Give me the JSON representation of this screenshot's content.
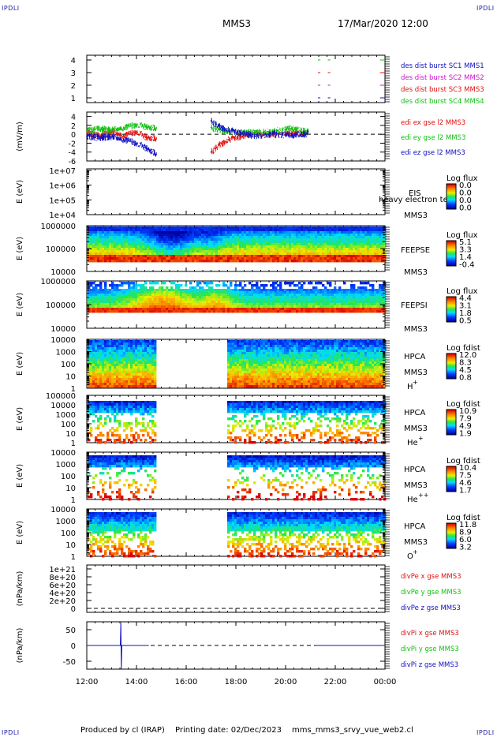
{
  "corners": {
    "tl": "IPDLI",
    "tr": "IPDLI",
    "bl": "IPDLI",
    "br": "IPDLI"
  },
  "header": {
    "title": "MMS3",
    "datetime": "17/Mar/2020 12:00"
  },
  "footer": {
    "producer": "Produced by cl (IRAP)",
    "printing": "Printing date: 02/Dec/2023",
    "filename": "mms_mms3_srvy_vue_web2.cl"
  },
  "colors": {
    "mms1": "#1010c0",
    "mms2": "#d010d0",
    "mms3": "#e01010",
    "mms4": "#10c010",
    "dashed": "#000000"
  },
  "x_axis": {
    "ticks": [
      "12:00",
      "14:00",
      "16:00",
      "18:00",
      "20:00",
      "22:00",
      "00:00"
    ]
  },
  "chart_data": [
    {
      "type": "line",
      "id": "burst",
      "yticks": [
        "4",
        "3",
        "2",
        "1"
      ],
      "legend": [
        "des dist burst SC1 MMS1",
        "des dist burst SC2 MMS2",
        "des dist burst SC3 MMS3",
        "des dist burst SC4 MMS4"
      ],
      "segments": [
        {
          "level": 4,
          "color": "mms4",
          "x": [
            21.3,
            21.4
          ]
        },
        {
          "level": 4,
          "color": "mms4",
          "x": [
            21.7,
            21.8
          ]
        },
        {
          "level": 4,
          "color": "mms4",
          "x": [
            23.8,
            24.0
          ]
        },
        {
          "level": 3,
          "color": "mms3",
          "x": [
            21.3,
            21.4
          ]
        },
        {
          "level": 3,
          "color": "mms3",
          "x": [
            21.7,
            21.8
          ]
        },
        {
          "level": 3,
          "color": "mms3",
          "x": [
            23.8,
            24.0
          ]
        },
        {
          "level": 2,
          "color": "mms2",
          "x": [
            21.3,
            21.4
          ]
        },
        {
          "level": 2,
          "color": "mms2",
          "x": [
            21.7,
            21.8
          ]
        },
        {
          "level": 2,
          "color": "mms2",
          "x": [
            23.8,
            24.0
          ]
        },
        {
          "level": 1,
          "color": "mms1",
          "x": [
            21.3,
            21.4
          ]
        },
        {
          "level": 1,
          "color": "mms1",
          "x": [
            21.7,
            21.8
          ]
        },
        {
          "level": 1,
          "color": "mms1",
          "x": [
            23.8,
            24.0
          ]
        }
      ]
    },
    {
      "type": "line",
      "id": "edi",
      "ylabel": "(mV/m)",
      "ylim": [
        -6,
        5
      ],
      "yticks": [
        "4",
        "2",
        "0",
        "-2",
        "-4",
        "-6"
      ],
      "legend": [
        "edi ex gse l2 MMS3",
        "edi ey gse l2 MMS3",
        "edi ez gse l2 MMS3"
      ],
      "series": [
        {
          "name": "edi ex gse l2 MMS3",
          "color": "mms3",
          "x": [
            12.0,
            12.5,
            13.0,
            13.5,
            14.0,
            14.4,
            14.8,
            17.0,
            17.3,
            17.7,
            18.2,
            18.8,
            19.5,
            20.2,
            20.9
          ],
          "y": [
            0.3,
            -0.4,
            0.5,
            -0.3,
            0.6,
            -0.8,
            -1.0,
            -4.0,
            -2.5,
            -1.2,
            -0.5,
            0.3,
            -0.2,
            0.2,
            0.1
          ]
        },
        {
          "name": "edi ey gse l2 MMS3",
          "color": "mms4",
          "x": [
            12.0,
            12.5,
            13.0,
            13.5,
            14.0,
            14.4,
            14.8,
            17.0,
            17.3,
            17.7,
            18.2,
            18.8,
            19.5,
            20.2,
            20.9
          ],
          "y": [
            0.8,
            1.2,
            0.9,
            1.5,
            2.2,
            1.6,
            1.3,
            1.5,
            1.0,
            0.6,
            0.4,
            0.5,
            0.6,
            1.3,
            0.5
          ]
        },
        {
          "name": "edi ez gse l2 MMS3",
          "color": "mms1",
          "x": [
            12.0,
            12.5,
            13.0,
            13.5,
            14.0,
            14.4,
            14.8,
            17.0,
            17.3,
            17.7,
            18.2,
            18.8,
            19.5,
            20.2,
            20.9
          ],
          "y": [
            -0.5,
            -0.8,
            -0.6,
            -1.2,
            -2.0,
            -3.2,
            -4.5,
            3.0,
            1.8,
            0.9,
            0.3,
            -0.4,
            0.2,
            -0.3,
            0.1
          ]
        }
      ]
    },
    {
      "type": "heatmap",
      "id": "eis",
      "ylabel": "E (eV)",
      "yticks": [
        "1e+07",
        "1e+06",
        "1e+05",
        "1e+04"
      ],
      "labels": [
        "EIS",
        "MMS3"
      ],
      "overlay_text": "heavy electron te",
      "cb_title": "Log flux",
      "cb_ticks": [
        "0.0",
        "0.0",
        "0.0",
        "0.0"
      ]
    },
    {
      "type": "heatmap",
      "id": "feepse",
      "ylabel": "E (eV)",
      "yticks": [
        "1000000",
        "100000",
        "10000"
      ],
      "labels": [
        "FEEPSE",
        "MMS3"
      ],
      "cb_title": "Log flux",
      "cb_ticks": [
        "5.1",
        "3.3",
        "1.4",
        "-0.4"
      ]
    },
    {
      "type": "heatmap",
      "id": "feepsi",
      "ylabel": "E (eV)",
      "yticks": [
        "1000000",
        "100000",
        "10000"
      ],
      "labels": [
        "FEEPSI",
        "MMS3"
      ],
      "cb_title": "Log flux",
      "cb_ticks": [
        "4.4",
        "3.1",
        "1.8",
        "0.5"
      ]
    },
    {
      "type": "heatmap",
      "id": "hpca_h",
      "ylabel": "E (eV)",
      "yticks": [
        "10000",
        "1000",
        "100",
        "10",
        "1"
      ],
      "labels": [
        "HPCA",
        "MMS3"
      ],
      "species": "H",
      "species_sup": "+",
      "cb_title": "Log fdist",
      "cb_ticks": [
        "12.0",
        "8.3",
        "4.5",
        "0.8"
      ],
      "gap_x": [
        14.75,
        17.6
      ]
    },
    {
      "type": "heatmap",
      "id": "hpca_he",
      "ylabel": "E (eV)",
      "yticks": [
        "100000",
        "10000",
        "1000",
        "100",
        "10",
        "1"
      ],
      "labels": [
        "HPCA",
        "MMS3"
      ],
      "species": "He",
      "species_sup": "+",
      "cb_title": "Log fdist",
      "cb_ticks": [
        "10.9",
        "7.9",
        "4.9",
        "1.9"
      ],
      "gap_x": [
        14.75,
        17.6
      ]
    },
    {
      "type": "heatmap",
      "id": "hpca_hepp",
      "ylabel": "E (eV)",
      "yticks": [
        "10000",
        "1000",
        "100",
        "10",
        "1"
      ],
      "labels": [
        "HPCA",
        "MMS3"
      ],
      "species": "He",
      "species_sup": "++",
      "cb_title": "Log fdist",
      "cb_ticks": [
        "10.4",
        "7.5",
        "4.6",
        "1.7"
      ],
      "gap_x": [
        14.75,
        17.6
      ]
    },
    {
      "type": "heatmap",
      "id": "hpca_o",
      "ylabel": "E (eV)",
      "yticks": [
        "10000",
        "1000",
        "100",
        "10",
        "1"
      ],
      "labels": [
        "HPCA",
        "MMS3"
      ],
      "species": "O",
      "species_sup": "+",
      "cb_title": "Log fdist",
      "cb_ticks": [
        "11.8",
        "8.9",
        "6.0",
        "3.2"
      ],
      "gap_x": [
        14.75,
        17.6
      ]
    },
    {
      "type": "line",
      "id": "divpe",
      "ylabel": "(nPa/km)",
      "yticks": [
        "1e+21",
        "8e+20",
        "6e+20",
        "4e+20",
        "2e+20",
        "0"
      ],
      "legend": [
        "divPe x gse MMS3",
        "divPe y gse MMS3",
        "divPe z gse MMS3"
      ],
      "series": []
    },
    {
      "type": "line",
      "id": "divpi",
      "ylabel": "(nPa/km)",
      "ylim": [
        -75,
        75
      ],
      "yticks": [
        "50",
        "0",
        "-50"
      ],
      "legend": [
        "divPi x gse MMS3",
        "divPi y gse MMS3",
        "divPi z gse MMS3"
      ],
      "series": [
        {
          "name": "divPi z gse MMS3",
          "color": "mms1",
          "x": [
            12.0,
            13.35,
            13.37,
            13.39,
            13.41,
            14.5
          ],
          "y": [
            0,
            0,
            72,
            -75,
            0,
            0
          ]
        },
        {
          "name": "divPi z gse MMS3",
          "color": "mms1",
          "x": [
            21.2,
            24.0
          ],
          "y": [
            0,
            0
          ]
        }
      ]
    }
  ]
}
